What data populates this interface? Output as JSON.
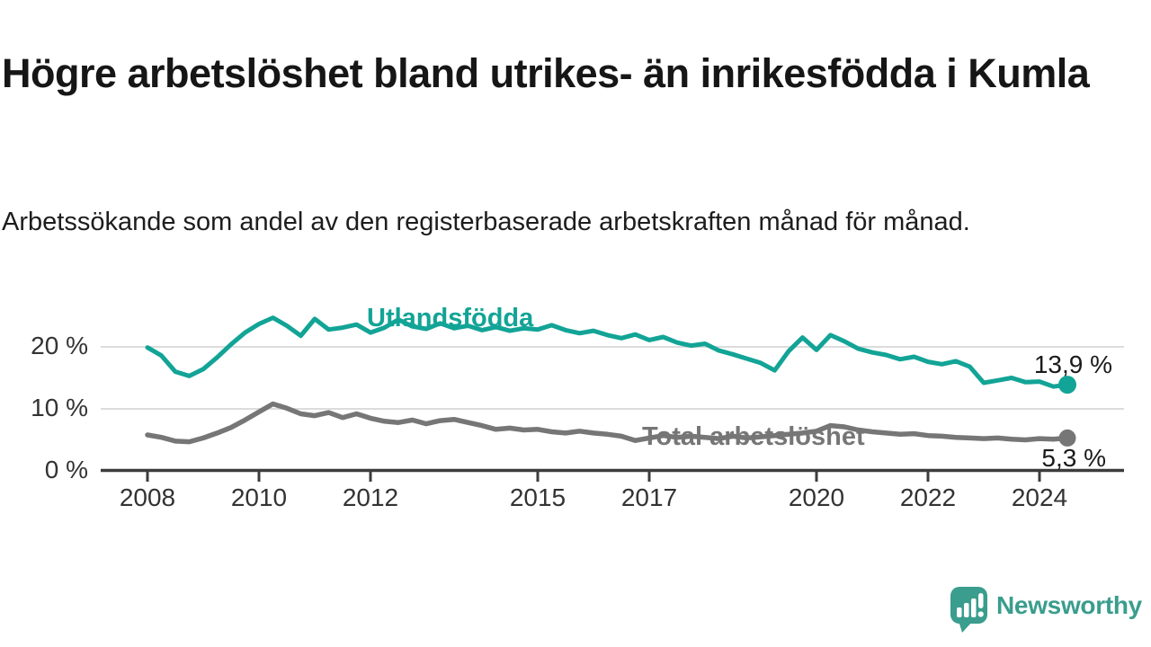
{
  "title": "Högre arbetslöshet bland utrikes- än inrikesfödda i Kumla",
  "subtitle": "Arbetssökande som andel av den registerbaserade arbetskraften månad för månad.",
  "branding": {
    "logo_text": "Newsworthy",
    "logo_color": "#3a9d8d"
  },
  "colors": {
    "series_foreign": "#12a496",
    "series_total": "#767676",
    "axis": "#3c3c3c",
    "grid": "#dcdcdc",
    "tick_text": "#333333"
  },
  "chart_data": {
    "type": "line",
    "title": "Högre arbetslöshet bland utrikes- än inrikesfödda i Kumla",
    "xlabel": "",
    "ylabel": "Arbetssökande som andel av den registerbaserade arbetskraften",
    "x_start_year": 2008.0,
    "x_interval_years": 0.25,
    "x_end_year": 2024.5,
    "ylim": [
      0,
      26
    ],
    "grid": "horizontal",
    "legend_position": "inline-labels",
    "x_ticks": [
      {
        "year": 2008,
        "label": "2008"
      },
      {
        "year": 2010,
        "label": "2010"
      },
      {
        "year": 2012,
        "label": "2012"
      },
      {
        "year": 2015,
        "label": "2015"
      },
      {
        "year": 2017,
        "label": "2017"
      },
      {
        "year": 2020,
        "label": "2020"
      },
      {
        "year": 2022,
        "label": "2022"
      },
      {
        "year": 2024,
        "label": "2024"
      }
    ],
    "y_ticks": [
      {
        "value": 0,
        "label": "0 %"
      },
      {
        "value": 10,
        "label": "10 %"
      },
      {
        "value": 20,
        "label": "20 %"
      }
    ],
    "series": [
      {
        "name": "Utlandsfödda",
        "color": "#12a496",
        "end_label": "13,9 %",
        "end_value": 13.9,
        "values": [
          19.9,
          18.6,
          16.0,
          15.3,
          16.4,
          18.3,
          20.4,
          22.3,
          23.7,
          24.7,
          23.4,
          21.8,
          24.5,
          22.8,
          23.1,
          23.6,
          22.3,
          23.1,
          24.4,
          23.3,
          22.9,
          23.8,
          23.0,
          23.4,
          22.7,
          23.2,
          22.6,
          23.0,
          22.8,
          23.5,
          22.7,
          22.2,
          22.6,
          21.9,
          21.4,
          22.0,
          21.1,
          21.6,
          20.7,
          20.2,
          20.5,
          19.4,
          18.8,
          18.1,
          17.4,
          16.2,
          19.3,
          21.5,
          19.5,
          21.9,
          20.9,
          19.7,
          19.1,
          18.7,
          18.0,
          18.4,
          17.6,
          17.2,
          17.7,
          16.8,
          14.2,
          14.6,
          15.0,
          14.3,
          14.4,
          13.6,
          13.9
        ]
      },
      {
        "name": "Total arbetslöshet",
        "color": "#767676",
        "end_label": "5,3 %",
        "end_value": 5.3,
        "values": [
          5.8,
          5.4,
          4.8,
          4.7,
          5.3,
          6.1,
          7.0,
          8.2,
          9.5,
          10.8,
          10.1,
          9.2,
          8.9,
          9.4,
          8.6,
          9.2,
          8.5,
          8.0,
          7.8,
          8.2,
          7.6,
          8.1,
          8.3,
          7.8,
          7.3,
          6.7,
          6.9,
          6.6,
          6.7,
          6.3,
          6.1,
          6.4,
          6.1,
          5.9,
          5.6,
          4.9,
          5.3,
          5.7,
          5.4,
          5.6,
          5.4,
          5.2,
          5.6,
          5.3,
          5.5,
          5.7,
          5.9,
          6.1,
          6.4,
          7.3,
          7.1,
          6.6,
          6.3,
          6.1,
          5.9,
          6.0,
          5.7,
          5.6,
          5.4,
          5.3,
          5.2,
          5.3,
          5.1,
          5.0,
          5.2,
          5.1,
          5.3
        ]
      }
    ]
  }
}
